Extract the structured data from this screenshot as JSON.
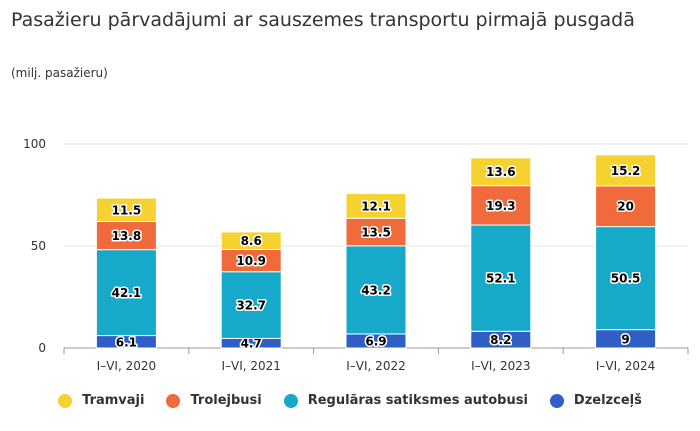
{
  "chart_data": {
    "type": "bar",
    "stacked": true,
    "title": "Pasažieru pārvadājumi ar sauszemes transportu pirmajā pusgadā",
    "subtitle": "(milj. pasažieru)",
    "categories": [
      "I–VI, 2020",
      "I–VI, 2021",
      "I–VI, 2022",
      "I–VI, 2023",
      "I–VI, 2024"
    ],
    "series": [
      {
        "name": "Dzelzceļš",
        "color": "#2f5fc4",
        "values": [
          6.1,
          4.7,
          6.9,
          8.2,
          9
        ],
        "labels": [
          "6.1",
          "4.7",
          "6.9",
          "8.2",
          "9"
        ]
      },
      {
        "name": "Regulāras satiksmes autobusi",
        "color": "#17a9c9",
        "values": [
          42.1,
          32.7,
          43.2,
          52.1,
          50.5
        ],
        "labels": [
          "42.1",
          "32.7",
          "43.2",
          "52.1",
          "50.5"
        ]
      },
      {
        "name": "Trolejbusi",
        "color": "#f06a3b",
        "values": [
          13.8,
          10.9,
          13.5,
          19.3,
          20
        ],
        "labels": [
          "13.8",
          "10.9",
          "13.5",
          "19.3",
          "20"
        ]
      },
      {
        "name": "Tramvaji",
        "color": "#f5d22f",
        "values": [
          11.5,
          8.6,
          12.1,
          13.6,
          15.2
        ],
        "labels": [
          "11.5",
          "8.6",
          "12.1",
          "13.6",
          "15.2"
        ]
      }
    ],
    "legend_order": [
      "Tramvaji",
      "Trolejbusi",
      "Regulāras satiksmes autobusi",
      "Dzelzceļš"
    ],
    "yticks": [
      0,
      50,
      100
    ],
    "ylim": [
      0,
      100
    ],
    "xlabel": "",
    "ylabel": "",
    "grid": true,
    "legend_position": "bottom"
  }
}
